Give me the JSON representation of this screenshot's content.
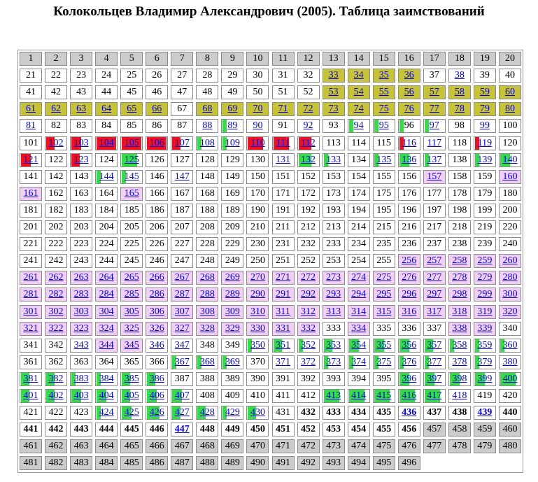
{
  "title": "Колокольцев Владимир Александрович (2005). Таблица заимствований",
  "table": {
    "columns": 20,
    "last_number": 496,
    "styles": {
      "olive": [
        33,
        34,
        35,
        36,
        53,
        54,
        55,
        56,
        57,
        58,
        59,
        60,
        61,
        62,
        63,
        64,
        65,
        66,
        68,
        69,
        70,
        71,
        72,
        73,
        74,
        75,
        76,
        77,
        78,
        79,
        80
      ],
      "pink": [
        157,
        160,
        161,
        165,
        256,
        257,
        258,
        259,
        260,
        261,
        262,
        263,
        264,
        265,
        266,
        267,
        268,
        269,
        270,
        271,
        272,
        273,
        274,
        275,
        276,
        277,
        278,
        279,
        280,
        281,
        282,
        283,
        284,
        285,
        286,
        287,
        288,
        289,
        290,
        291,
        292,
        293,
        294,
        295,
        296,
        297,
        298,
        299,
        300,
        301,
        302,
        303,
        304,
        305,
        306,
        307,
        308,
        309,
        310,
        311,
        312,
        313,
        314,
        315,
        316,
        317,
        318,
        319,
        320,
        321,
        322,
        323,
        324,
        325,
        326,
        327,
        328,
        329,
        330,
        331,
        332,
        334,
        338,
        339,
        344,
        345
      ],
      "grey": [
        457,
        458,
        459,
        460,
        461,
        462,
        463,
        464,
        465,
        466,
        467,
        468,
        469,
        470,
        471,
        472,
        473,
        474,
        475,
        476,
        477,
        478,
        479,
        480,
        481,
        482,
        483,
        484,
        485,
        486,
        487,
        488,
        489,
        490,
        491,
        492,
        493,
        494,
        495,
        496
      ],
      "link": [
        33,
        34,
        35,
        36,
        38,
        53,
        54,
        55,
        56,
        57,
        58,
        59,
        60,
        61,
        62,
        63,
        64,
        65,
        66,
        68,
        69,
        70,
        71,
        72,
        73,
        74,
        75,
        76,
        77,
        78,
        79,
        80,
        81,
        88,
        89,
        90,
        92,
        94,
        95,
        97,
        99,
        102,
        103,
        104,
        105,
        106,
        107,
        108,
        109,
        110,
        111,
        112,
        116,
        117,
        119,
        121,
        123,
        125,
        131,
        132,
        133,
        135,
        136,
        137,
        139,
        140,
        144,
        145,
        147,
        157,
        160,
        161,
        165,
        256,
        257,
        258,
        259,
        260,
        261,
        262,
        263,
        264,
        265,
        266,
        267,
        268,
        269,
        270,
        271,
        272,
        273,
        274,
        275,
        276,
        277,
        278,
        279,
        280,
        281,
        282,
        283,
        284,
        285,
        286,
        287,
        288,
        289,
        290,
        291,
        292,
        293,
        294,
        295,
        296,
        297,
        298,
        299,
        300,
        301,
        302,
        303,
        304,
        305,
        306,
        307,
        308,
        309,
        310,
        311,
        312,
        313,
        314,
        315,
        316,
        317,
        318,
        319,
        320,
        321,
        322,
        323,
        324,
        325,
        326,
        327,
        328,
        329,
        330,
        331,
        332,
        334,
        338,
        339,
        343,
        344,
        345,
        346,
        347,
        350,
        351,
        352,
        353,
        354,
        355,
        356,
        357,
        358,
        359,
        360,
        367,
        368,
        369,
        371,
        372,
        373,
        374,
        375,
        376,
        377,
        378,
        379,
        380,
        381,
        382,
        383,
        384,
        385,
        386,
        396,
        397,
        398,
        399,
        400,
        401,
        402,
        403,
        404,
        405,
        406,
        407,
        413,
        414,
        415,
        416,
        417,
        418,
        424,
        425,
        426,
        427,
        428,
        429,
        430,
        436,
        439,
        447
      ],
      "bold": [
        432,
        433,
        434,
        435,
        436,
        437,
        438,
        439,
        440,
        441,
        442,
        443,
        444,
        445,
        446,
        447,
        448,
        449,
        450,
        451,
        452,
        453,
        454,
        455,
        456
      ],
      "red_mark": [
        102,
        103,
        104,
        105,
        106,
        107,
        110,
        111,
        112,
        116,
        119,
        121,
        123
      ],
      "green_mark": [
        89,
        94,
        95,
        96,
        97,
        108,
        109,
        125,
        132,
        133,
        135,
        136,
        137,
        139,
        140,
        144,
        145,
        350,
        351,
        352,
        353,
        354,
        355,
        356,
        357,
        358,
        359,
        360,
        367,
        368,
        369,
        373,
        374,
        375,
        376,
        377,
        379,
        381,
        382,
        383,
        384,
        385,
        386,
        396,
        397,
        398,
        399,
        400,
        401,
        402,
        403,
        404,
        405,
        406,
        407,
        413,
        414,
        415,
        416,
        417,
        424,
        425,
        426,
        427,
        428,
        429,
        430
      ]
    }
  }
}
